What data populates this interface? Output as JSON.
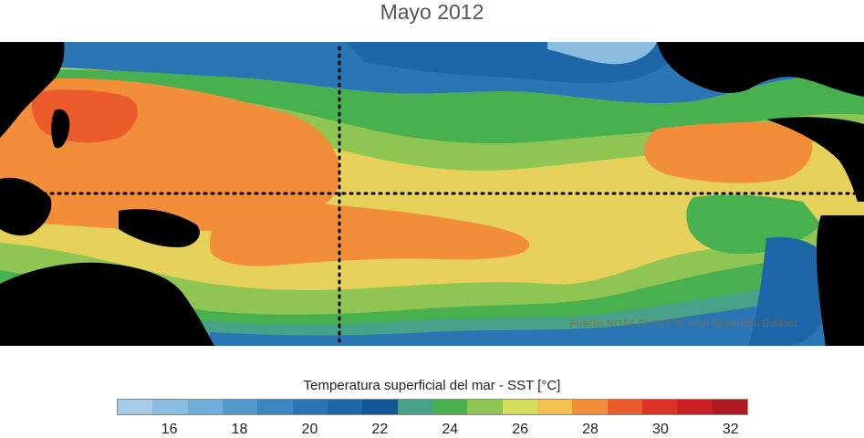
{
  "title": "Mayo 2012",
  "map": {
    "source": "Fuente: NOAA OI SST V2 High Resolution Dataset",
    "ocean_base_color": "#e6d25a",
    "land_color": "#000000",
    "reference_line_color": "#000000"
  },
  "colorbar": {
    "label": "Temperatura superficial del mar - SST  [°C]",
    "colors": [
      "#a6cbe6",
      "#8bbde0",
      "#6fadd8",
      "#5299cc",
      "#3c86bf",
      "#2a75b4",
      "#1d66a8",
      "#125898",
      "#48a28a",
      "#48b04e",
      "#8fc653",
      "#d6df5d",
      "#f5c04d",
      "#f28d3a",
      "#ec5b2c",
      "#dc3329",
      "#cb1f26",
      "#b01b22"
    ],
    "ticks": [
      "16",
      "18",
      "20",
      "22",
      "24",
      "26",
      "28",
      "30",
      "32"
    ]
  },
  "legend_info": {
    "units": "°C",
    "min_value": 15,
    "max_value": 33,
    "step": 1
  }
}
